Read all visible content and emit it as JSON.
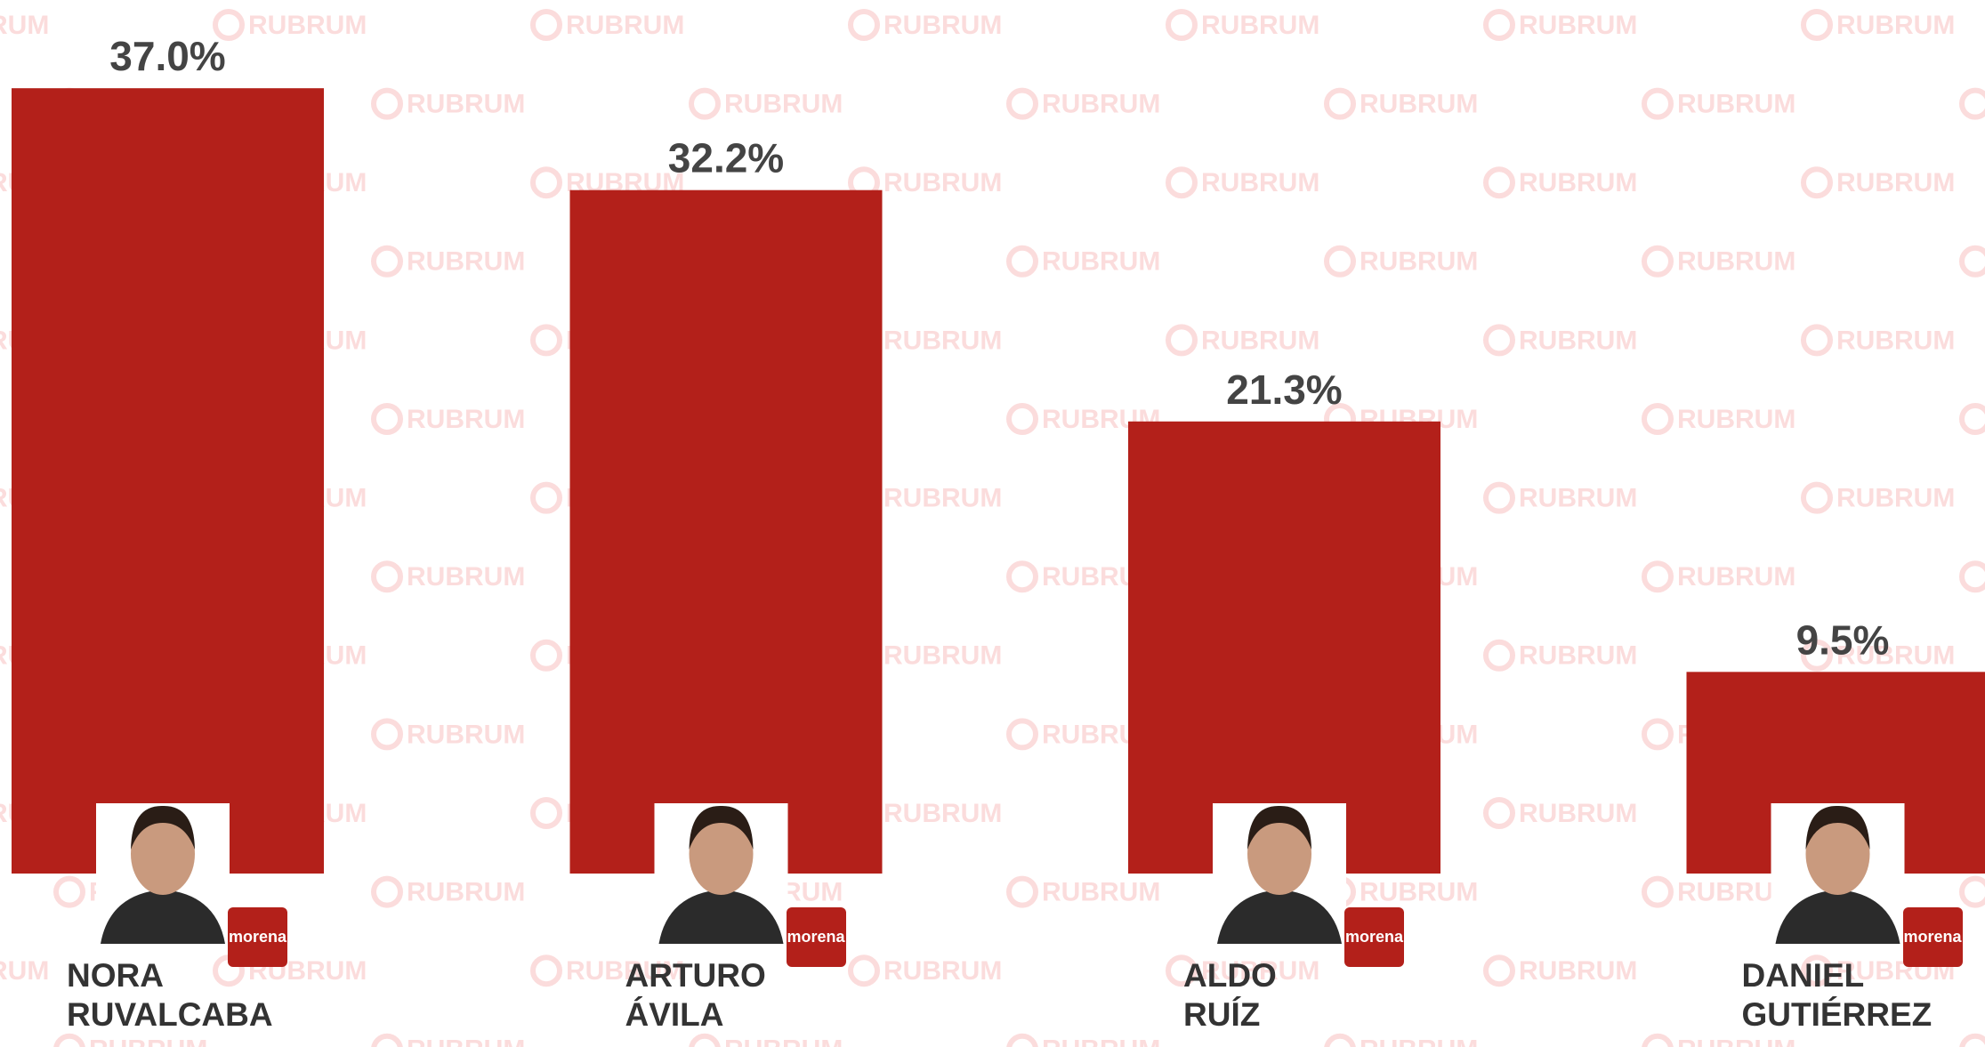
{
  "watermark": "RUBRUM",
  "party": "morena",
  "chart_data": {
    "type": "bar",
    "categories": [
      "NORA\nRUVALCABA",
      "ARTURO\nÁVILA",
      "ALDO\nRUÍZ",
      "DANIEL\nGUTIÉRREZ"
    ],
    "values": [
      37.0,
      32.2,
      21.3,
      9.5
    ],
    "value_labels": [
      "37.0%",
      "32.2%",
      "21.3%",
      "9.5%"
    ],
    "color": "#b3201a"
  }
}
